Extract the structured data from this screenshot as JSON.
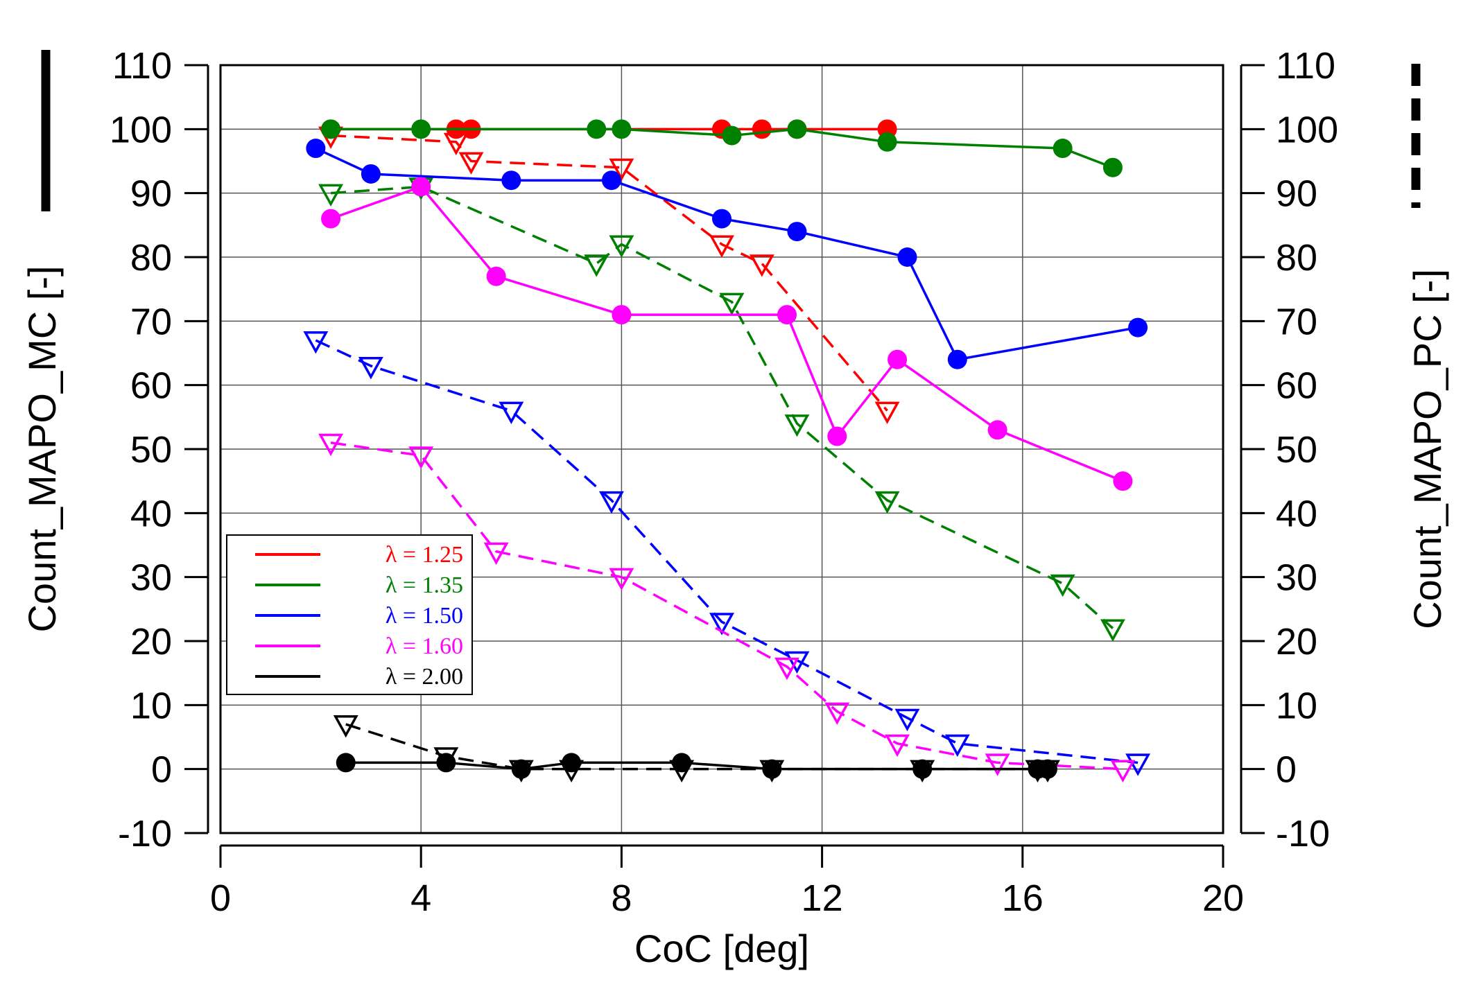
{
  "chart_data": {
    "type": "line",
    "xlabel": "CoC [deg]",
    "ylabel_left": "Count_MAPO_MC [-]",
    "ylabel_right": "Count_MAPO_PC [-]",
    "xlim": [
      0,
      20
    ],
    "ylim": [
      -10,
      110
    ],
    "x_ticks": [
      0,
      4,
      8,
      12,
      16,
      20
    ],
    "y_ticks": [
      -10,
      0,
      10,
      20,
      30,
      40,
      50,
      60,
      70,
      80,
      90,
      100,
      110
    ],
    "grid": true,
    "legend_position": "lower-left",
    "series": [
      {
        "name": "λ = 1.25",
        "color": "#ff0000",
        "kind": "MC",
        "marker": "circle",
        "x": [
          2.2,
          4.7,
          5.0,
          10.0,
          10.8,
          11.5,
          13.3
        ],
        "y": [
          100,
          100,
          100,
          100,
          100,
          100,
          100
        ]
      },
      {
        "name": "λ = 1.35",
        "color": "#008000",
        "kind": "MC",
        "marker": "circle",
        "x": [
          2.2,
          4.0,
          7.5,
          8.0,
          10.2,
          11.5,
          13.3,
          16.8,
          17.8
        ],
        "y": [
          100,
          100,
          100,
          100,
          99,
          100,
          98,
          97,
          94
        ]
      },
      {
        "name": "λ = 1.50",
        "color": "#0000ff",
        "kind": "MC",
        "marker": "circle",
        "x": [
          1.9,
          3.0,
          5.8,
          7.8,
          10.0,
          11.5,
          13.7,
          14.7,
          18.3
        ],
        "y": [
          97,
          93,
          92,
          92,
          86,
          84,
          80,
          64,
          69
        ]
      },
      {
        "name": "λ = 1.60",
        "color": "#ff00ff",
        "kind": "MC",
        "marker": "circle",
        "x": [
          2.2,
          4.0,
          5.5,
          8.0,
          11.3,
          12.3,
          13.5,
          15.5,
          18.0
        ],
        "y": [
          86,
          91,
          77,
          71,
          71,
          52,
          64,
          53,
          45
        ]
      },
      {
        "name": "λ = 2.00",
        "color": "#000000",
        "kind": "MC",
        "marker": "circle",
        "x": [
          2.5,
          4.5,
          6.0,
          7.0,
          9.2,
          11.0,
          14.0,
          16.3,
          16.5
        ],
        "y": [
          1,
          1,
          0,
          1,
          1,
          0,
          0,
          0,
          0
        ]
      },
      {
        "name": "λ = 1.25",
        "color": "#ff0000",
        "kind": "PC",
        "marker": "triangle",
        "x": [
          2.2,
          4.7,
          5.0,
          8.0,
          10.0,
          10.8,
          13.3
        ],
        "y": [
          99,
          98,
          95,
          94,
          82,
          79,
          56
        ]
      },
      {
        "name": "λ = 1.35",
        "color": "#008000",
        "kind": "PC",
        "marker": "triangle",
        "x": [
          2.2,
          4.0,
          7.5,
          8.0,
          10.2,
          11.5,
          13.3,
          16.8,
          17.8
        ],
        "y": [
          90,
          91,
          79,
          82,
          73,
          54,
          42,
          29,
          22
        ]
      },
      {
        "name": "λ = 1.50",
        "color": "#0000ff",
        "kind": "PC",
        "marker": "triangle",
        "x": [
          1.9,
          3.0,
          5.8,
          7.8,
          10.0,
          11.5,
          13.7,
          14.7,
          18.3
        ],
        "y": [
          67,
          63,
          56,
          42,
          23,
          17,
          8,
          4,
          1
        ]
      },
      {
        "name": "λ = 1.60",
        "color": "#ff00ff",
        "kind": "PC",
        "marker": "triangle",
        "x": [
          2.2,
          4.0,
          5.5,
          8.0,
          11.3,
          12.3,
          13.5,
          15.5,
          18.0
        ],
        "y": [
          51,
          49,
          34,
          30,
          16,
          9,
          4,
          1,
          0
        ]
      },
      {
        "name": "λ = 2.00",
        "color": "#000000",
        "kind": "PC",
        "marker": "triangle",
        "x": [
          2.5,
          4.5,
          6.0,
          7.0,
          9.2,
          11.0,
          14.0,
          16.3,
          16.5
        ],
        "y": [
          7,
          2,
          0,
          0,
          0,
          0,
          0,
          0,
          0
        ]
      }
    ],
    "legend": [
      {
        "label": "λ = 1.25",
        "color": "#ff0000"
      },
      {
        "label": "λ = 1.35",
        "color": "#008000"
      },
      {
        "label": "λ = 1.50",
        "color": "#0000ff"
      },
      {
        "label": "λ = 1.60",
        "color": "#ff00ff"
      },
      {
        "label": "λ = 2.00",
        "color": "#000000"
      }
    ]
  }
}
